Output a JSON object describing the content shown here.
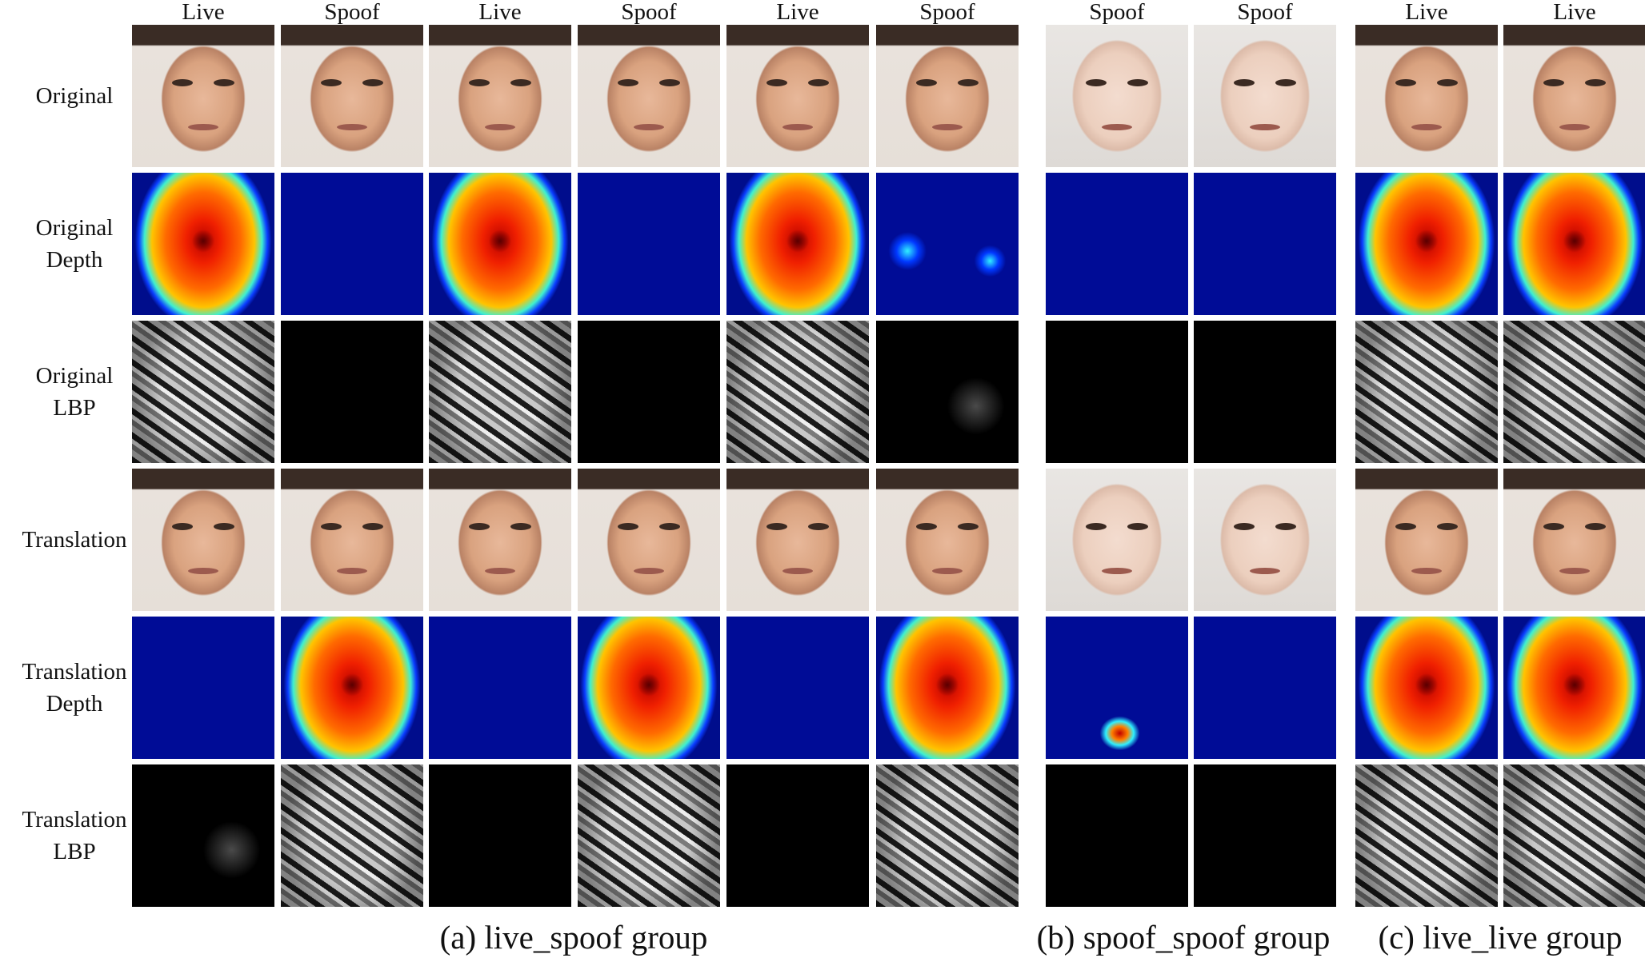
{
  "figure": {
    "columns": [
      "Live",
      "Spoof",
      "Live",
      "Spoof",
      "Live",
      "Spoof",
      "Spoof",
      "Spoof",
      "Live",
      "Live"
    ],
    "rows": [
      [
        "Original"
      ],
      [
        "Original",
        "Depth"
      ],
      [
        "Original",
        "LBP"
      ],
      [
        "Translation"
      ],
      [
        "Translation",
        "Depth"
      ],
      [
        "Translation",
        "LBP"
      ]
    ],
    "groups": [
      "(a) live_spoof group",
      "(b) spoof_spoof group",
      "(c) live_live group"
    ]
  }
}
